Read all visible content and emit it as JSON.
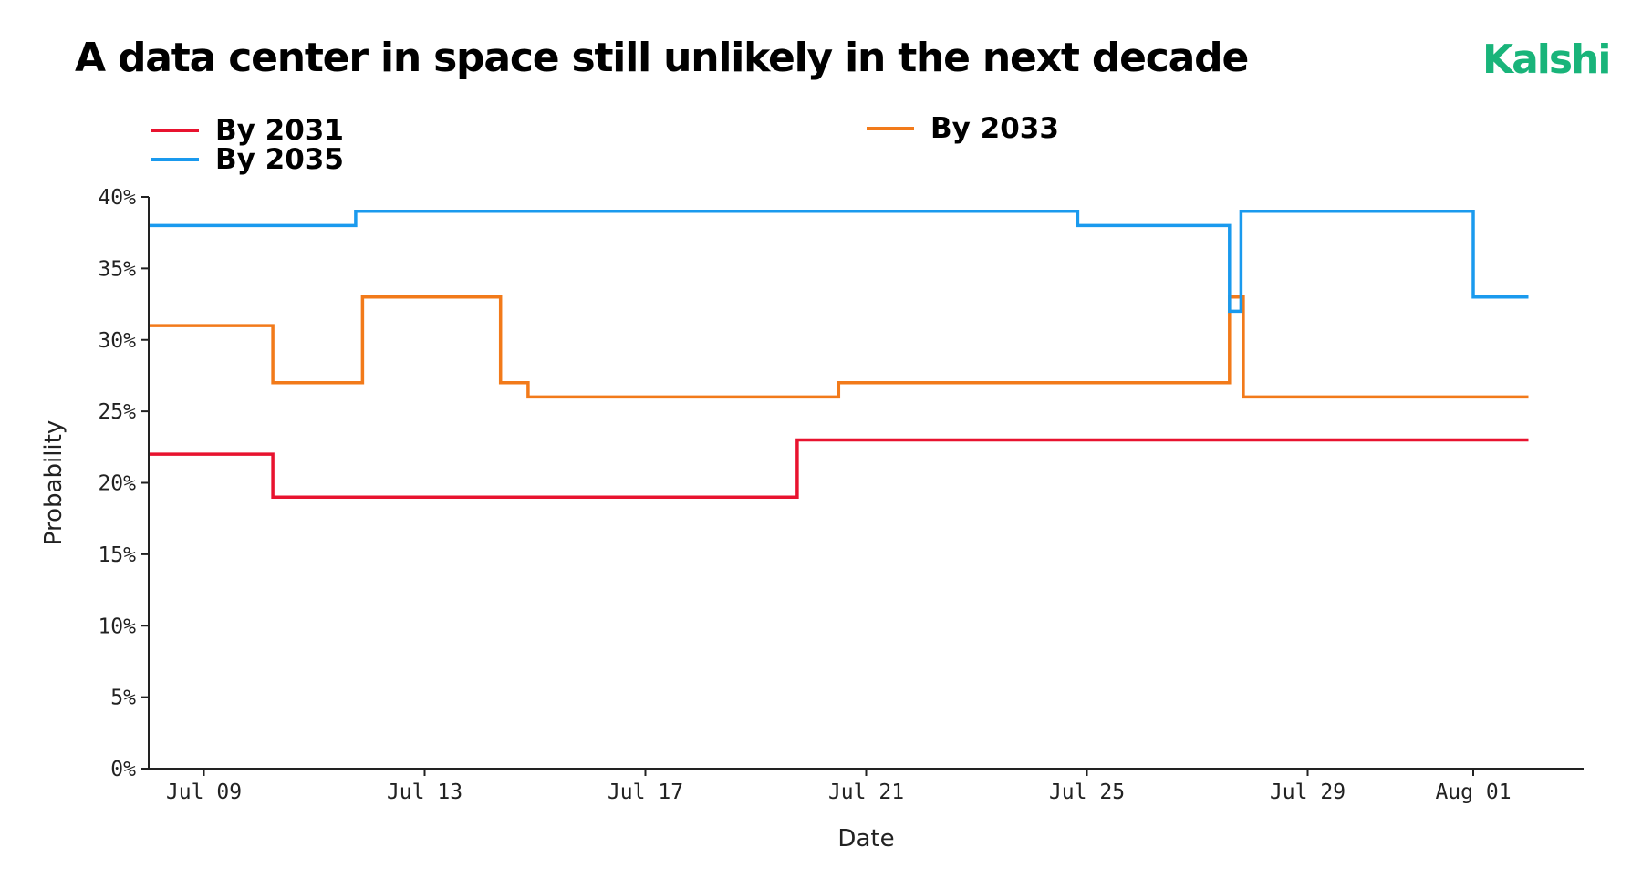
{
  "header": {
    "title": "A data center in space still unlikely in the next decade",
    "brand": "Kalshi",
    "brand_color": "#19B47A"
  },
  "chart_data": {
    "type": "line",
    "step": true,
    "title": "A data center in space still unlikely in the next decade",
    "xlabel": "Date",
    "ylabel": "Probability",
    "ylim": [
      0,
      40
    ],
    "xlim": [
      "2025-07-08",
      "2025-08-03"
    ],
    "y_ticks": [
      0,
      5,
      10,
      15,
      20,
      25,
      30,
      35,
      40
    ],
    "y_tick_labels": [
      "0%",
      "5%",
      "10%",
      "15%",
      "20%",
      "25%",
      "30%",
      "35%",
      "40%"
    ],
    "x_ticks": [
      "2025-07-09",
      "2025-07-13",
      "2025-07-17",
      "2025-07-21",
      "2025-07-25",
      "2025-07-29",
      "2025-08-01"
    ],
    "x_tick_labels": [
      "Jul 09",
      "Jul 13",
      "Jul 17",
      "Jul 21",
      "Jul 25",
      "Jul 29",
      "Aug 01"
    ],
    "grid": false,
    "legend": "top",
    "series": [
      {
        "name": "By 2031",
        "color": "#E8132F",
        "points": [
          [
            "2025-07-08",
            22
          ],
          [
            "2025-07-10 06:00",
            19
          ],
          [
            "2025-07-19 18:00",
            23
          ],
          [
            "2025-08-02",
            23
          ]
        ]
      },
      {
        "name": "By 2033",
        "color": "#F27A1A",
        "points": [
          [
            "2025-07-08",
            31
          ],
          [
            "2025-07-10 06:00",
            27
          ],
          [
            "2025-07-11 21:00",
            33
          ],
          [
            "2025-07-14 09:00",
            27
          ],
          [
            "2025-07-14 21:00",
            26
          ],
          [
            "2025-07-20 12:00",
            27
          ],
          [
            "2025-07-27 14:00",
            33
          ],
          [
            "2025-07-27 20:00",
            26
          ],
          [
            "2025-08-02",
            26
          ]
        ]
      },
      {
        "name": "By 2035",
        "color": "#1A9AEE",
        "points": [
          [
            "2025-07-08",
            38
          ],
          [
            "2025-07-11 18:00",
            39
          ],
          [
            "2025-07-24 20:00",
            38
          ],
          [
            "2025-07-27 14:00",
            32
          ],
          [
            "2025-07-27 19:00",
            39
          ],
          [
            "2025-08-01 00:00",
            33
          ],
          [
            "2025-08-02",
            33
          ]
        ]
      }
    ]
  }
}
